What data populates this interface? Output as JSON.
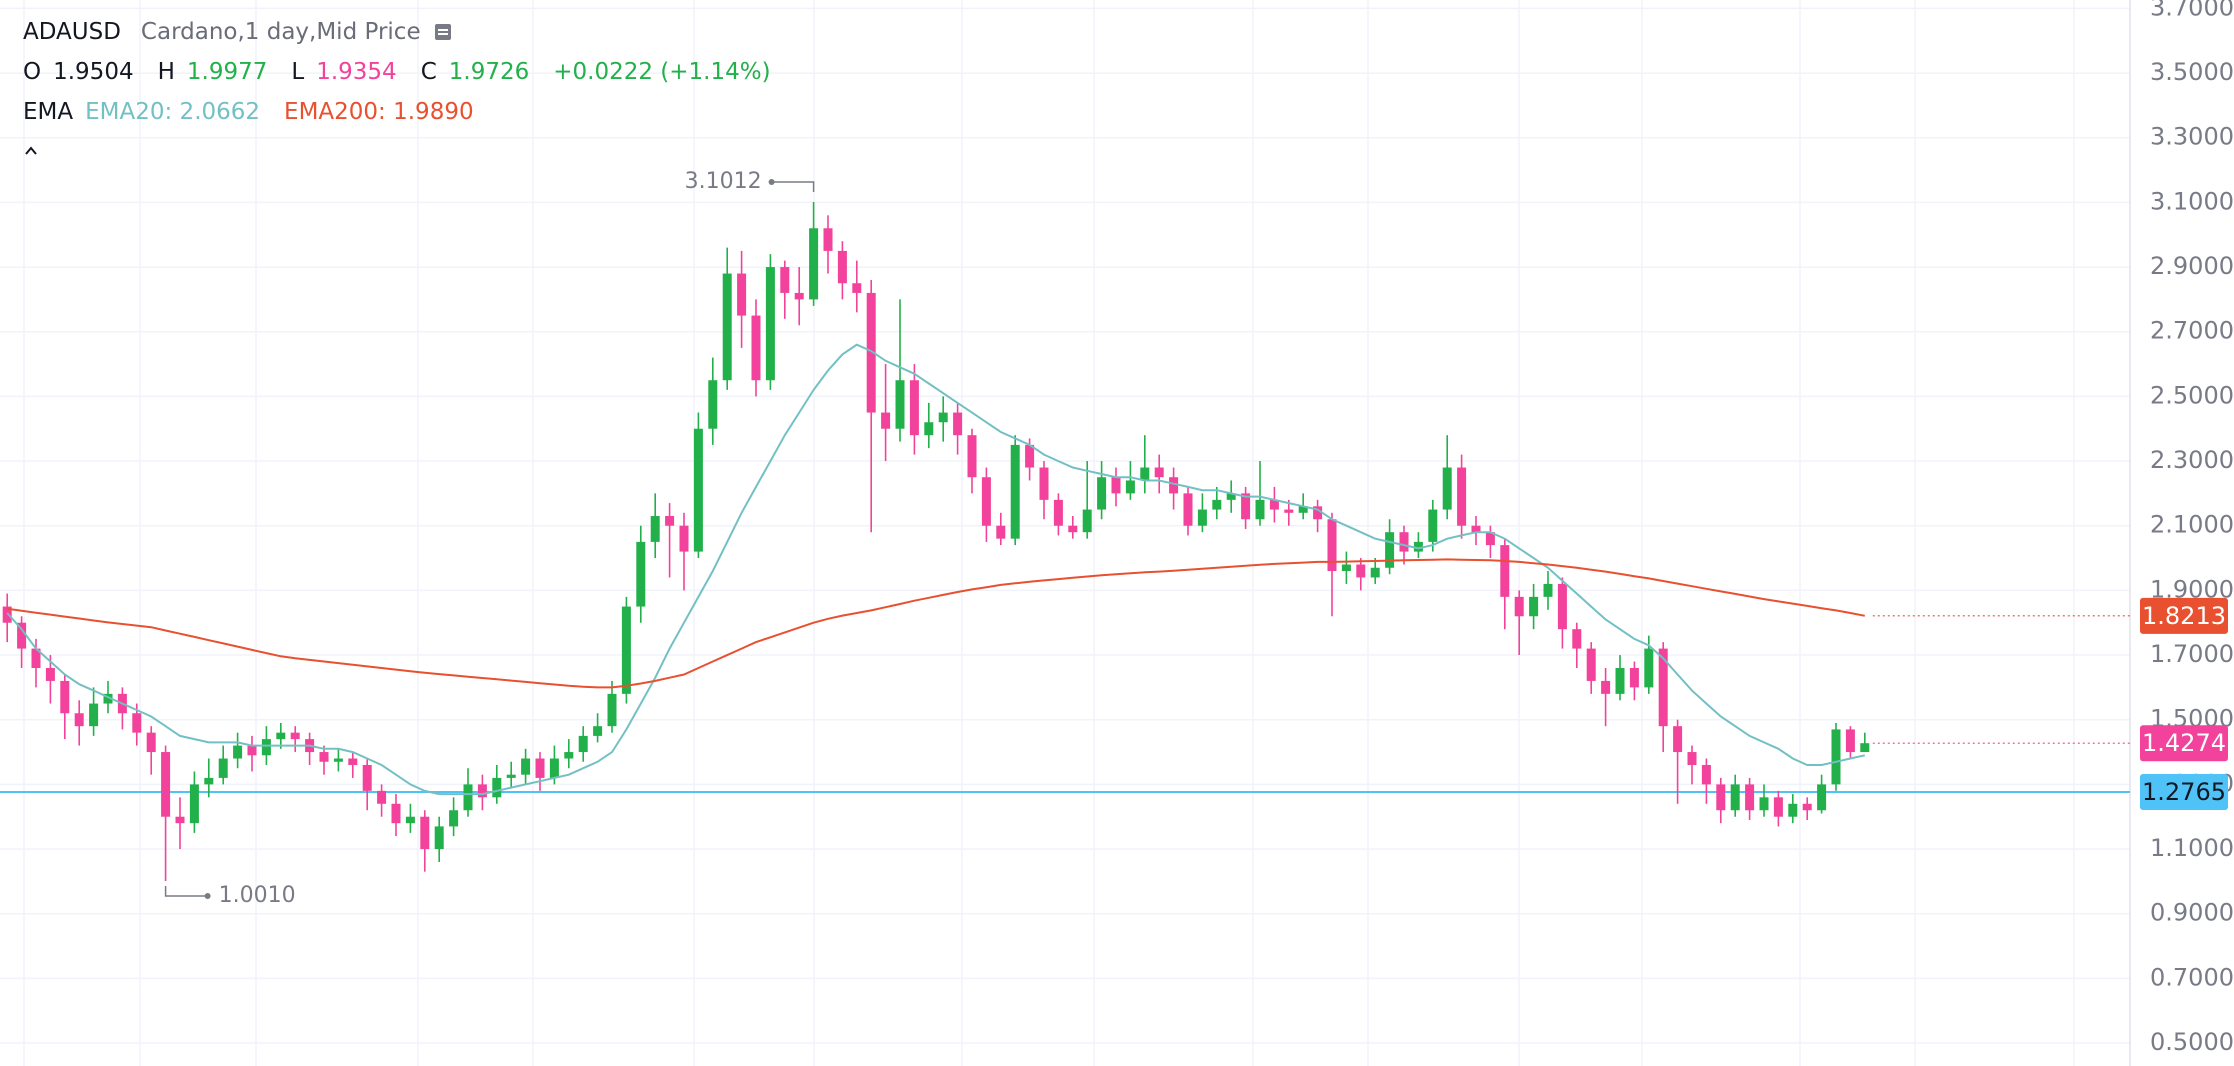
{
  "chart_data": {
    "type": "candlestick",
    "symbol": "ADAUSD",
    "description": "Cardano,1 day,Mid Price",
    "ohlc_legend": [
      [
        "O",
        "1.9504"
      ],
      [
        "H",
        "1.9977"
      ],
      [
        "L",
        "1.9354"
      ],
      [
        "C",
        "1.9726"
      ]
    ],
    "change": "+0.0222 (+1.14%)",
    "indicator": "EMA",
    "up_color": "#22b04a",
    "down_color": "#f2429b",
    "open": [
      1.85,
      1.8,
      1.72,
      1.66,
      1.62,
      1.52,
      1.48,
      1.55,
      1.58,
      1.52,
      1.46,
      1.4,
      1.2,
      1.18,
      1.3,
      1.32,
      1.38,
      1.42,
      1.39,
      1.44,
      1.46,
      1.44,
      1.4,
      1.37,
      1.38,
      1.36,
      1.28,
      1.24,
      1.18,
      1.2,
      1.1,
      1.17,
      1.22,
      1.3,
      1.26,
      1.32,
      1.33,
      1.38,
      1.32,
      1.38,
      1.4,
      1.45,
      1.48,
      1.58,
      1.85,
      2.05,
      2.13,
      2.1,
      2.02,
      2.4,
      2.55,
      2.88,
      2.75,
      2.55,
      2.9,
      2.82,
      2.8,
      3.02,
      2.95,
      2.85,
      2.82,
      2.45,
      2.4,
      2.55,
      2.38,
      2.42,
      2.45,
      2.38,
      2.25,
      2.1,
      2.06,
      2.35,
      2.28,
      2.18,
      2.1,
      2.08,
      2.15,
      2.25,
      2.2,
      2.24,
      2.28,
      2.25,
      2.2,
      2.1,
      2.15,
      2.18,
      2.2,
      2.12,
      2.18,
      2.15,
      2.14,
      2.16,
      2.12,
      1.96,
      1.98,
      1.94,
      1.97,
      2.08,
      2.02,
      2.05,
      2.15,
      2.28,
      2.1,
      2.08,
      2.04,
      1.88,
      1.82,
      1.88,
      1.92,
      1.78,
      1.72,
      1.62,
      1.58,
      1.66,
      1.6,
      1.72,
      1.48,
      1.4,
      1.36,
      1.3,
      1.22,
      1.3,
      1.22,
      1.26,
      1.2,
      1.24,
      1.22,
      1.3,
      1.47,
      1.4
    ],
    "high": [
      1.89,
      1.82,
      1.75,
      1.7,
      1.64,
      1.56,
      1.6,
      1.62,
      1.6,
      1.55,
      1.48,
      1.42,
      1.26,
      1.34,
      1.38,
      1.42,
      1.46,
      1.45,
      1.48,
      1.49,
      1.48,
      1.46,
      1.42,
      1.41,
      1.4,
      1.38,
      1.3,
      1.27,
      1.24,
      1.22,
      1.2,
      1.26,
      1.35,
      1.33,
      1.36,
      1.37,
      1.41,
      1.4,
      1.42,
      1.44,
      1.48,
      1.52,
      1.62,
      1.88,
      2.1,
      2.2,
      2.17,
      2.14,
      2.45,
      2.62,
      2.96,
      2.95,
      2.8,
      2.94,
      2.92,
      2.9,
      3.1012,
      3.06,
      2.98,
      2.92,
      2.86,
      2.6,
      2.8,
      2.6,
      2.48,
      2.5,
      2.48,
      2.4,
      2.28,
      2.14,
      2.38,
      2.37,
      2.3,
      2.2,
      2.13,
      2.3,
      2.3,
      2.28,
      2.3,
      2.38,
      2.32,
      2.28,
      2.22,
      2.2,
      2.22,
      2.24,
      2.22,
      2.3,
      2.22,
      2.18,
      2.2,
      2.18,
      2.14,
      2.02,
      2.0,
      2.0,
      2.12,
      2.1,
      2.08,
      2.18,
      2.38,
      2.32,
      2.13,
      2.1,
      2.06,
      1.9,
      1.92,
      1.96,
      1.94,
      1.8,
      1.74,
      1.66,
      1.7,
      1.68,
      1.76,
      1.74,
      1.5,
      1.42,
      1.38,
      1.32,
      1.33,
      1.32,
      1.3,
      1.28,
      1.27,
      1.26,
      1.33,
      1.49,
      1.48,
      1.46
    ],
    "low": [
      1.74,
      1.66,
      1.6,
      1.55,
      1.44,
      1.42,
      1.45,
      1.52,
      1.47,
      1.42,
      1.33,
      1.001,
      1.1,
      1.15,
      1.26,
      1.3,
      1.35,
      1.34,
      1.36,
      1.41,
      1.4,
      1.36,
      1.33,
      1.34,
      1.32,
      1.22,
      1.2,
      1.14,
      1.15,
      1.03,
      1.06,
      1.14,
      1.2,
      1.22,
      1.24,
      1.29,
      1.3,
      1.28,
      1.3,
      1.35,
      1.37,
      1.43,
      1.46,
      1.55,
      1.8,
      2.0,
      1.94,
      1.9,
      2.0,
      2.35,
      2.52,
      2.65,
      2.5,
      2.52,
      2.74,
      2.72,
      2.78,
      2.88,
      2.8,
      2.76,
      2.08,
      2.3,
      2.36,
      2.32,
      2.34,
      2.36,
      2.32,
      2.2,
      2.05,
      2.04,
      2.04,
      2.24,
      2.12,
      2.07,
      2.06,
      2.06,
      2.12,
      2.16,
      2.18,
      2.2,
      2.2,
      2.15,
      2.07,
      2.08,
      2.12,
      2.14,
      2.09,
      2.1,
      2.11,
      2.1,
      2.12,
      2.08,
      1.82,
      1.92,
      1.9,
      1.92,
      1.95,
      1.98,
      2.0,
      2.02,
      2.12,
      2.06,
      2.04,
      2.0,
      1.78,
      1.7,
      1.78,
      1.84,
      1.72,
      1.66,
      1.58,
      1.48,
      1.56,
      1.56,
      1.58,
      1.4,
      1.24,
      1.3,
      1.24,
      1.18,
      1.2,
      1.19,
      1.2,
      1.17,
      1.18,
      1.19,
      1.21,
      1.28,
      1.38,
      1.41
    ],
    "close": [
      1.8,
      1.72,
      1.66,
      1.62,
      1.52,
      1.48,
      1.55,
      1.58,
      1.52,
      1.46,
      1.4,
      1.2,
      1.18,
      1.3,
      1.32,
      1.38,
      1.42,
      1.39,
      1.44,
      1.46,
      1.44,
      1.4,
      1.37,
      1.38,
      1.36,
      1.28,
      1.24,
      1.18,
      1.2,
      1.1,
      1.17,
      1.22,
      1.3,
      1.26,
      1.32,
      1.33,
      1.38,
      1.32,
      1.38,
      1.4,
      1.45,
      1.48,
      1.58,
      1.85,
      2.05,
      2.13,
      2.1,
      2.02,
      2.4,
      2.55,
      2.88,
      2.75,
      2.55,
      2.9,
      2.82,
      2.8,
      3.02,
      2.95,
      2.85,
      2.82,
      2.45,
      2.4,
      2.55,
      2.38,
      2.42,
      2.45,
      2.38,
      2.25,
      2.1,
      2.06,
      2.35,
      2.28,
      2.18,
      2.1,
      2.08,
      2.15,
      2.25,
      2.2,
      2.24,
      2.28,
      2.25,
      2.2,
      2.1,
      2.15,
      2.18,
      2.2,
      2.12,
      2.18,
      2.15,
      2.14,
      2.16,
      2.12,
      1.96,
      1.98,
      1.94,
      1.97,
      2.08,
      2.02,
      2.05,
      2.15,
      2.28,
      2.1,
      2.08,
      2.04,
      1.88,
      1.82,
      1.88,
      1.92,
      1.78,
      1.72,
      1.62,
      1.58,
      1.66,
      1.6,
      1.72,
      1.48,
      1.4,
      1.36,
      1.3,
      1.22,
      1.3,
      1.22,
      1.26,
      1.2,
      1.24,
      1.22,
      1.3,
      1.47,
      1.4,
      1.4274
    ],
    "series": [
      {
        "name": "EMA20: 2.0662",
        "color": "#72c0c4",
        "values": [
          1.83,
          1.78,
          1.72,
          1.68,
          1.64,
          1.61,
          1.59,
          1.57,
          1.55,
          1.53,
          1.51,
          1.48,
          1.45,
          1.44,
          1.43,
          1.43,
          1.43,
          1.42,
          1.42,
          1.42,
          1.42,
          1.42,
          1.41,
          1.41,
          1.4,
          1.38,
          1.36,
          1.33,
          1.3,
          1.28,
          1.27,
          1.27,
          1.27,
          1.27,
          1.28,
          1.29,
          1.3,
          1.31,
          1.32,
          1.33,
          1.35,
          1.37,
          1.4,
          1.47,
          1.55,
          1.63,
          1.72,
          1.8,
          1.88,
          1.96,
          2.05,
          2.14,
          2.22,
          2.3,
          2.38,
          2.45,
          2.52,
          2.58,
          2.63,
          2.66,
          2.64,
          2.61,
          2.59,
          2.57,
          2.54,
          2.51,
          2.48,
          2.45,
          2.42,
          2.39,
          2.37,
          2.35,
          2.32,
          2.3,
          2.28,
          2.27,
          2.26,
          2.25,
          2.25,
          2.24,
          2.24,
          2.23,
          2.22,
          2.21,
          2.21,
          2.2,
          2.19,
          2.19,
          2.18,
          2.17,
          2.16,
          2.15,
          2.12,
          2.1,
          2.08,
          2.06,
          2.05,
          2.04,
          2.03,
          2.04,
          2.06,
          2.07,
          2.08,
          2.08,
          2.06,
          2.03,
          2.0,
          1.97,
          1.93,
          1.89,
          1.85,
          1.81,
          1.78,
          1.75,
          1.73,
          1.69,
          1.64,
          1.59,
          1.55,
          1.51,
          1.48,
          1.45,
          1.43,
          1.41,
          1.38,
          1.36,
          1.36,
          1.37,
          1.38,
          1.39
        ]
      },
      {
        "name": "EMA200: 1.9890",
        "color": "#e8502f",
        "values": [
          1.843,
          1.837,
          1.831,
          1.825,
          1.819,
          1.813,
          1.807,
          1.801,
          1.796,
          1.791,
          1.786,
          1.776,
          1.766,
          1.756,
          1.746,
          1.736,
          1.726,
          1.716,
          1.706,
          1.696,
          1.69,
          1.685,
          1.68,
          1.675,
          1.67,
          1.665,
          1.66,
          1.655,
          1.65,
          1.645,
          1.641,
          1.637,
          1.633,
          1.629,
          1.625,
          1.621,
          1.617,
          1.613,
          1.609,
          1.605,
          1.602,
          1.6,
          1.6,
          1.605,
          1.612,
          1.62,
          1.63,
          1.64,
          1.66,
          1.68,
          1.7,
          1.72,
          1.74,
          1.755,
          1.77,
          1.785,
          1.8,
          1.812,
          1.822,
          1.83,
          1.838,
          1.848,
          1.858,
          1.868,
          1.877,
          1.886,
          1.895,
          1.903,
          1.91,
          1.917,
          1.922,
          1.927,
          1.931,
          1.935,
          1.939,
          1.943,
          1.947,
          1.95,
          1.953,
          1.956,
          1.958,
          1.961,
          1.964,
          1.967,
          1.97,
          1.973,
          1.976,
          1.979,
          1.982,
          1.984,
          1.986,
          1.988,
          1.988,
          1.989,
          1.99,
          1.991,
          1.992,
          1.993,
          1.994,
          1.995,
          1.996,
          1.995,
          1.994,
          1.993,
          1.991,
          1.988,
          1.984,
          1.98,
          1.975,
          1.97,
          1.964,
          1.958,
          1.951,
          1.944,
          1.937,
          1.929,
          1.921,
          1.913,
          1.905,
          1.897,
          1.889,
          1.881,
          1.873,
          1.866,
          1.859,
          1.852,
          1.845,
          1.838,
          1.83,
          1.8213
        ]
      }
    ],
    "low_label": "1.0010",
    "price_line": 1.2765,
    "price_line_color": "#4fc3f7",
    "ylim": [
      0.429,
      3.726
    ],
    "yticks": [
      {
        "value": 0.5,
        "label": "0.5000"
      },
      {
        "value": 0.7,
        "label": "0.7000"
      },
      {
        "value": 0.9,
        "label": "0.9000"
      },
      {
        "value": 1.1,
        "label": "1.1000"
      },
      {
        "value": 1.3,
        "label": "1.3000"
      },
      {
        "value": 1.5,
        "label": "1.5000"
      },
      {
        "value": 1.7,
        "label": "1.7000"
      },
      {
        "value": 1.9,
        "label": "1.9000"
      },
      {
        "value": 2.1,
        "label": "2.1000"
      },
      {
        "value": 2.3,
        "label": "2.3000"
      },
      {
        "value": 2.5,
        "label": "2.5000"
      },
      {
        "value": 2.7,
        "label": "2.7000"
      },
      {
        "value": 2.9,
        "label": "2.9000"
      },
      {
        "value": 3.1,
        "label": "3.1000"
      },
      {
        "value": 3.3,
        "label": "3.3000"
      },
      {
        "value": 3.5,
        "label": "3.5000"
      },
      {
        "value": 3.7,
        "label": "3.7000"
      }
    ],
    "grid": true
  }
}
